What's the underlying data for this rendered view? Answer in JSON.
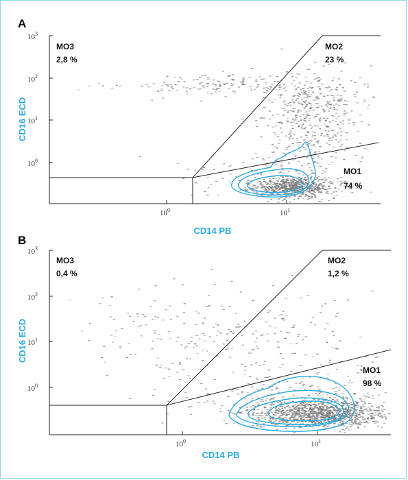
{
  "colors": {
    "axis_label": "#29abe2",
    "contour": "#29abe2",
    "dots": "#7a7a7a",
    "gate_line": "#222222"
  },
  "chart_data": [
    {
      "type": "scatter",
      "panel": "A",
      "xlabel": "CD14 PB",
      "ylabel": "CD16 ECD",
      "xscale": "log",
      "yscale": "log",
      "x_ticks": [
        "10^0",
        "10^1"
      ],
      "y_ticks": [
        "10^0",
        "10^1",
        "10^2",
        "10^3"
      ],
      "x_range_decades": [
        -1.4,
        1.7
      ],
      "y_range_decades": [
        -0.95,
        3.0
      ],
      "contours": 3,
      "gates": [
        {
          "name": "MO3",
          "value": "2,8 %",
          "position": "top-left"
        },
        {
          "name": "MO2",
          "value": "23 %",
          "position": "top-right"
        },
        {
          "name": "MO1",
          "value": "74 %",
          "position": "bottom-right"
        }
      ],
      "clusters": [
        {
          "center": [
            0.85,
            -0.55
          ],
          "spread": [
            0.2,
            0.12
          ],
          "count": 700
        },
        {
          "center": [
            1.0,
            0.8
          ],
          "spread": [
            0.2,
            0.6
          ],
          "count": 380
        },
        {
          "center": [
            0.2,
            1.85
          ],
          "spread": [
            0.55,
            0.12
          ],
          "count": 150
        },
        {
          "center": [
            1.1,
            1.6
          ],
          "spread": [
            0.25,
            0.35
          ],
          "count": 120
        },
        {
          "center": [
            0.5,
            -0.2
          ],
          "spread": [
            0.4,
            0.35
          ],
          "count": 60
        }
      ]
    },
    {
      "type": "scatter",
      "panel": "B",
      "xlabel": "CD14 PB",
      "ylabel": "CD16 ECD",
      "xscale": "log",
      "yscale": "log",
      "x_ticks": [
        "10^0",
        "10^1"
      ],
      "y_ticks": [
        "10^0",
        "10^1",
        "10^2",
        "10^3"
      ],
      "x_range_decades": [
        -1.35,
        1.5
      ],
      "y_range_decades": [
        -0.95,
        3.0
      ],
      "contours": 3,
      "gates": [
        {
          "name": "MO3",
          "value": "0,4 %",
          "position": "top-left"
        },
        {
          "name": "MO2",
          "value": "1,2 %",
          "position": "top-right"
        },
        {
          "name": "MO1",
          "value": "98 %",
          "position": "bottom-right"
        }
      ],
      "clusters": [
        {
          "center": [
            0.9,
            -0.5
          ],
          "spread": [
            0.28,
            0.15
          ],
          "count": 1100
        },
        {
          "center": [
            0.75,
            -0.2
          ],
          "spread": [
            0.4,
            0.3
          ],
          "count": 200
        },
        {
          "center": [
            0.3,
            0.8
          ],
          "spread": [
            0.55,
            0.6
          ],
          "count": 210
        },
        {
          "center": [
            -0.2,
            1.4
          ],
          "spread": [
            0.45,
            0.45
          ],
          "count": 90
        }
      ]
    }
  ],
  "panels": [
    {
      "letter": "A",
      "xlabel": "CD14 PB",
      "ylabel": "CD16 ECD",
      "ticks": {
        "x1": "10",
        "x1_exp": "0",
        "x2": "10",
        "x2_exp": "1",
        "y0": "10",
        "y0_exp": "0",
        "y1": "10",
        "y1_exp": "1",
        "y2": "10",
        "y2_exp": "2",
        "y3": "10",
        "y3_exp": "3"
      },
      "gates": {
        "mo3": {
          "name": "MO3",
          "value": "2,8 %"
        },
        "mo2": {
          "name": "MO2",
          "value": "23 %"
        },
        "mo1": {
          "name": "MO1",
          "value": "74 %"
        }
      }
    },
    {
      "letter": "B",
      "xlabel": "CD14 PB",
      "ylabel": "CD16 ECD",
      "ticks": {
        "x1": "10",
        "x1_exp": "0",
        "x2": "10",
        "x2_exp": "1",
        "y0": "10",
        "y0_exp": "0",
        "y1": "10",
        "y1_exp": "1",
        "y2": "10",
        "y2_exp": "2",
        "y3": "10",
        "y3_exp": "3"
      },
      "gates": {
        "mo3": {
          "name": "MO3",
          "value": "0,4 %"
        },
        "mo2": {
          "name": "MO2",
          "value": "1,2 %"
        },
        "mo1": {
          "name": "MO1",
          "value": "98 %"
        }
      }
    }
  ]
}
